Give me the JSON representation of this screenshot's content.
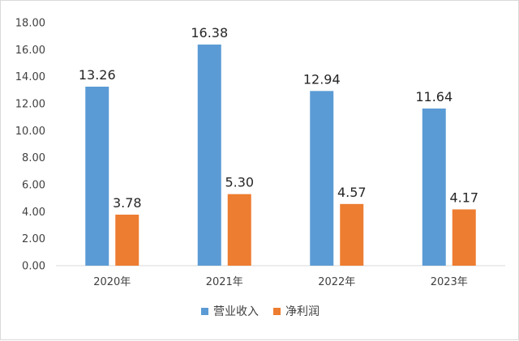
{
  "chart_data": {
    "type": "bar",
    "categories": [
      "2020年",
      "2021年",
      "2022年",
      "2023年"
    ],
    "series": [
      {
        "name": "营业收入",
        "values": [
          13.26,
          16.38,
          12.94,
          11.64
        ],
        "color": "#5b9bd5"
      },
      {
        "name": "净利润",
        "values": [
          3.78,
          5.3,
          4.57,
          4.17
        ],
        "color": "#ed7d31"
      }
    ],
    "ylim": [
      0,
      18
    ],
    "yticks": [
      "0.00",
      "2.00",
      "4.00",
      "6.00",
      "8.00",
      "10.00",
      "12.00",
      "14.00",
      "16.00",
      "18.00"
    ],
    "data_labels": [
      [
        "13.26",
        "16.38",
        "12.94",
        "11.64"
      ],
      [
        "3.78",
        "5.30",
        "4.57",
        "4.17"
      ]
    ],
    "grid": false,
    "legend_position": "bottom"
  }
}
